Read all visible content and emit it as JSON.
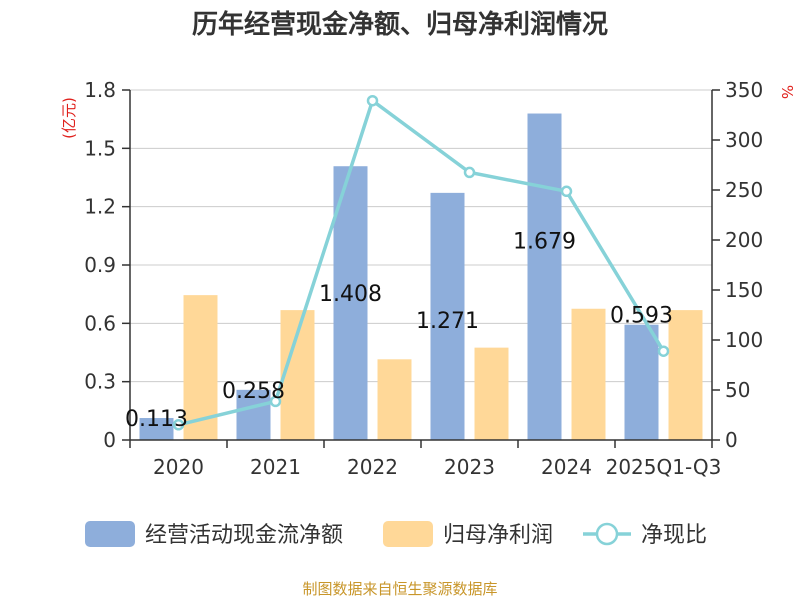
{
  "chart_data": {
    "type": "bar",
    "title": "历年经营现金净额、归母净利润情况",
    "categories": [
      "2020",
      "2021",
      "2022",
      "2023",
      "2024",
      "2025Q1-Q3"
    ],
    "series": [
      {
        "name": "经营活动现金流净额",
        "kind": "bar",
        "axis": "left",
        "color": "#8eaedb",
        "values": [
          0.113,
          0.258,
          1.408,
          1.271,
          1.679,
          0.593
        ]
      },
      {
        "name": "归母净利润",
        "kind": "bar",
        "axis": "left",
        "color": "#ffd898",
        "values": [
          0.745,
          0.668,
          0.415,
          0.475,
          0.675,
          0.668
        ]
      },
      {
        "name": "净现比",
        "kind": "line",
        "axis": "right",
        "color": "#86d2d8",
        "values": [
          15.2,
          38.6,
          339.3,
          267.6,
          248.7,
          88.8
        ]
      }
    ],
    "data_labels": [
      "0.113",
      "0.258",
      "1.408",
      "1.271",
      "1.679",
      "0.593"
    ],
    "y_left": {
      "unit": "(亿元)",
      "ylim": [
        0,
        1.8
      ],
      "ticks": [
        "0",
        "0.3",
        "0.6",
        "0.9",
        "1.2",
        "1.5",
        "1.8"
      ]
    },
    "y_right": {
      "unit": "%",
      "ylim": [
        0,
        350
      ],
      "ticks": [
        "0",
        "50",
        "100",
        "150",
        "200",
        "250",
        "300",
        "350"
      ]
    },
    "grid": true,
    "legend_position": "bottom"
  },
  "source_text": "制图数据来自恒生聚源数据库"
}
